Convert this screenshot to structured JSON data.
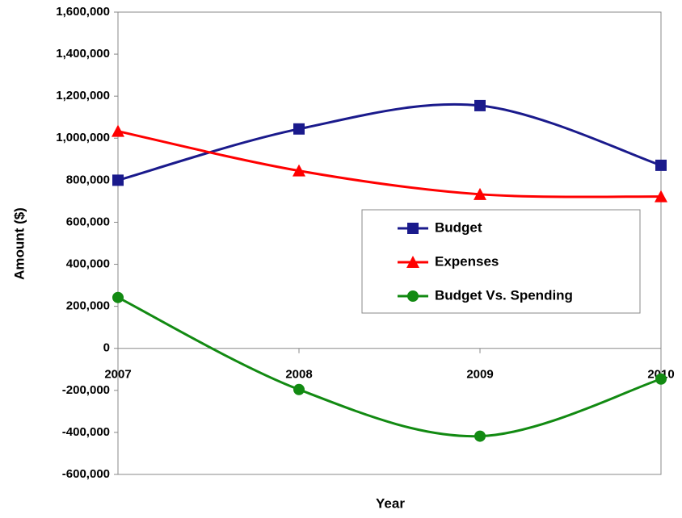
{
  "chart_data": {
    "type": "line",
    "smooth": true,
    "x_label": "Year",
    "y_label": "Amount ($)",
    "categories": [
      "2007",
      "2008",
      "2009",
      "2010"
    ],
    "series": [
      {
        "name": "Budget",
        "color": "#1a1a8c",
        "marker": "square",
        "values": [
          800000,
          1044000,
          1155000,
          871000
        ]
      },
      {
        "name": "Expenses",
        "color": "#ff0000",
        "marker": "triangle",
        "values": [
          1033000,
          845000,
          733000,
          722000
        ]
      },
      {
        "name": "Budget Vs. Spending",
        "color": "#128a12",
        "marker": "circle",
        "values": [
          242000,
          -196000,
          -418000,
          -146000
        ]
      }
    ],
    "ylim": [
      -600000,
      1600000
    ],
    "yticks": [
      {
        "value": -600000,
        "label": "-600,000"
      },
      {
        "value": -400000,
        "label": "-400,000"
      },
      {
        "value": -200000,
        "label": "-200,000"
      },
      0,
      {
        "value": 200000,
        "label": "200,000"
      },
      {
        "value": 400000,
        "label": "400,000"
      },
      {
        "value": 600000,
        "label": "600,000"
      },
      {
        "value": 800000,
        "label": "800,000"
      },
      {
        "value": 1000000,
        "label": "1,000,000"
      },
      {
        "value": 1200000,
        "label": "1,200,000"
      },
      {
        "value": 1400000,
        "label": "1,400,000"
      },
      {
        "value": 1600000,
        "label": "1,600,000"
      }
    ],
    "legend": "right",
    "grid": false
  }
}
